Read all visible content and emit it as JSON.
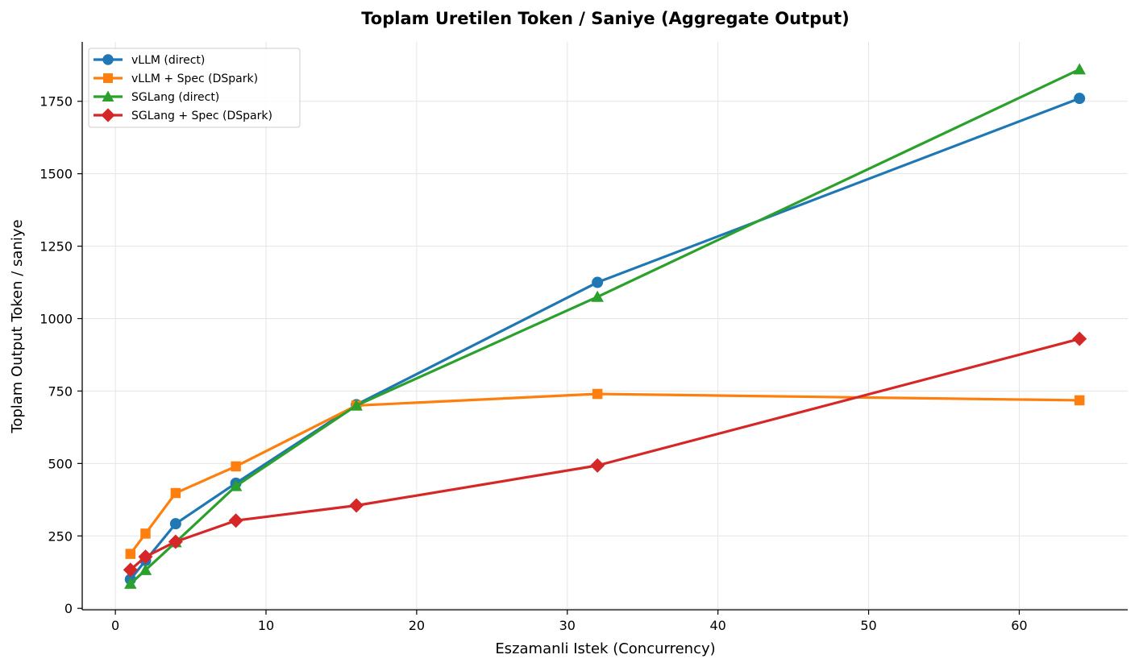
{
  "chart_data": {
    "type": "line",
    "title": "Toplam Uretilen Token / Saniye (Aggregate Output)",
    "xlabel": "Eszamanli Istek (Concurrency)",
    "ylabel": "Toplam Output Token / saniye",
    "xlim": [
      -2.2,
      67.2
    ],
    "ylim": [
      -5,
      1955
    ],
    "xticks": [
      0,
      10,
      20,
      30,
      40,
      50,
      60
    ],
    "yticks": [
      0,
      250,
      500,
      750,
      1000,
      1250,
      1500,
      1750
    ],
    "grid": true,
    "legend_position": "top-left",
    "x": [
      1,
      2,
      4,
      8,
      16,
      32,
      64
    ],
    "series": [
      {
        "name": "vLLM (direct)",
        "color": "#1f77b4",
        "marker": "circle",
        "values": [
          100,
          165,
          292,
          432,
          703,
          1125,
          1760
        ]
      },
      {
        "name": "vLLM + Spec (DSpark)",
        "color": "#ff7f0e",
        "marker": "square",
        "values": [
          188,
          258,
          398,
          490,
          700,
          740,
          718
        ]
      },
      {
        "name": "SGLang (direct)",
        "color": "#2ca02c",
        "marker": "triangle",
        "values": [
          85,
          132,
          228,
          422,
          700,
          1075,
          1860
        ]
      },
      {
        "name": "SGLang + Spec (DSpark)",
        "color": "#d62728",
        "marker": "diamond",
        "values": [
          133,
          178,
          230,
          303,
          355,
          493,
          930
        ]
      }
    ]
  }
}
